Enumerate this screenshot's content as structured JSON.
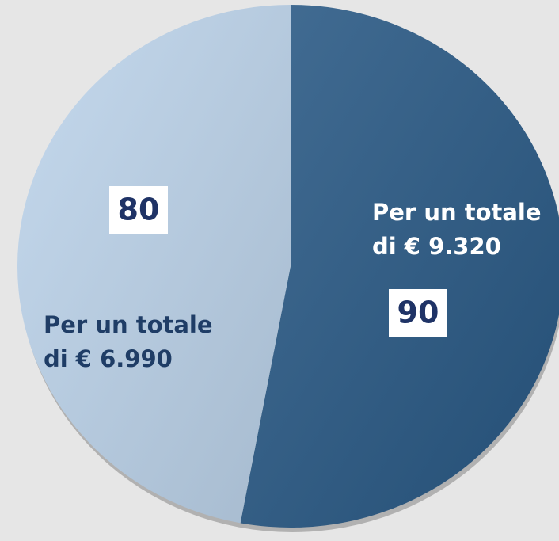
{
  "chart_data": {
    "type": "pie",
    "values": [
      90,
      80
    ],
    "colors": [
      "#295985",
      "#bdd4eb"
    ],
    "annotations": [
      [
        "Per un totale",
        "di € 9.320"
      ],
      [
        "Per un totale",
        "di € 6.990"
      ]
    ],
    "annotation_colors": [
      "#ffffff",
      "#1f3d66"
    ]
  }
}
